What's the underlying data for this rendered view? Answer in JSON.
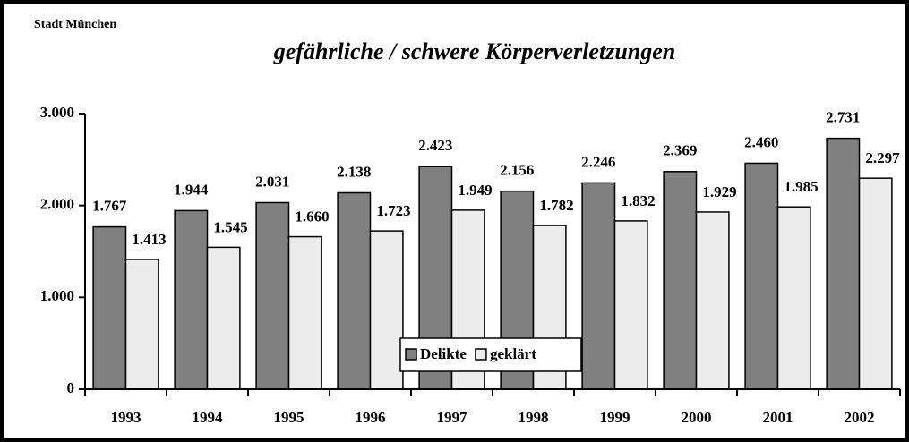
{
  "chart_data": {
    "type": "bar",
    "subtitle": "Stadt München",
    "title": "gefährliche / schwere Körperverletzungen",
    "categories": [
      "1993",
      "1994",
      "1995",
      "1996",
      "1997",
      "1998",
      "1999",
      "2000",
      "2001",
      "2002"
    ],
    "series": [
      {
        "name": "Delikte",
        "color": "#808080",
        "values": [
          1767,
          1944,
          2031,
          2138,
          2423,
          2156,
          2246,
          2369,
          2460,
          2731
        ],
        "value_labels": [
          "1.767",
          "1.944",
          "2.031",
          "2.138",
          "2.423",
          "2.156",
          "2.246",
          "2.369",
          "2.460",
          "2.731"
        ]
      },
      {
        "name": "geklärt",
        "color": "#ececec",
        "values": [
          1413,
          1545,
          1660,
          1723,
          1949,
          1782,
          1832,
          1929,
          1985,
          2297
        ],
        "value_labels": [
          "1.413",
          "1.545",
          "1.660",
          "1.723",
          "1.949",
          "1.782",
          "1.832",
          "1.929",
          "1.985",
          "2.297"
        ]
      }
    ],
    "ylim": [
      0,
      3000
    ],
    "yticks": [
      0,
      {
        "value": 1000,
        "label": "1.000"
      },
      {
        "value": 2000,
        "label": "2.000"
      },
      {
        "value": 3000,
        "label": "3.000"
      }
    ],
    "grid": false,
    "legend": "bottom"
  }
}
